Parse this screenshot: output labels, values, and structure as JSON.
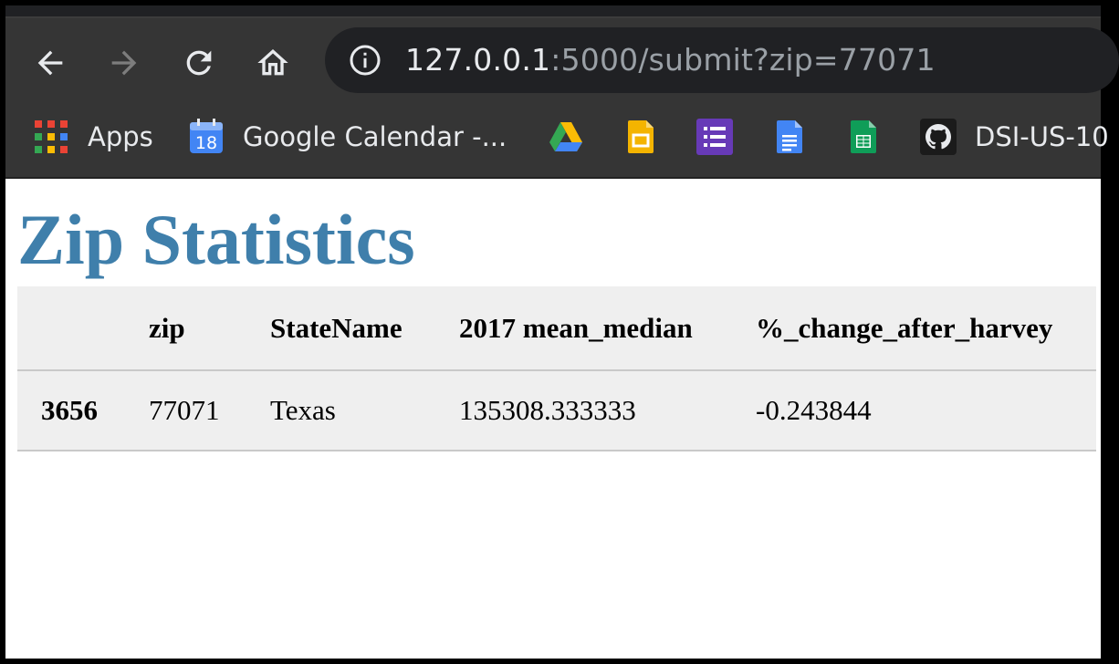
{
  "browser": {
    "url_host": "127.0.0.1",
    "url_rest": ":5000/submit?zip=77071",
    "bookmarks": [
      {
        "label": "Apps",
        "icon": "apps-grid-icon"
      },
      {
        "label": "Google Calendar -...",
        "icon": "google-calendar-icon",
        "icon_text": "18"
      },
      {
        "label": "",
        "icon": "google-drive-icon"
      },
      {
        "label": "",
        "icon": "google-slides-icon"
      },
      {
        "label": "",
        "icon": "google-forms-icon"
      },
      {
        "label": "",
        "icon": "google-docs-icon"
      },
      {
        "label": "",
        "icon": "google-sheets-icon"
      },
      {
        "label": "DSI-US-10",
        "icon": "github-icon"
      }
    ]
  },
  "page": {
    "title": "Zip Statistics",
    "title_color": "#3f7fab",
    "table": {
      "columns": [
        "",
        "zip",
        "StateName",
        "2017 mean_median",
        "%_change_after_harvey"
      ],
      "rows": [
        {
          "index": "3656",
          "cells": [
            "77071",
            "Texas",
            "135308.333333",
            "-0.243844"
          ]
        }
      ]
    }
  }
}
